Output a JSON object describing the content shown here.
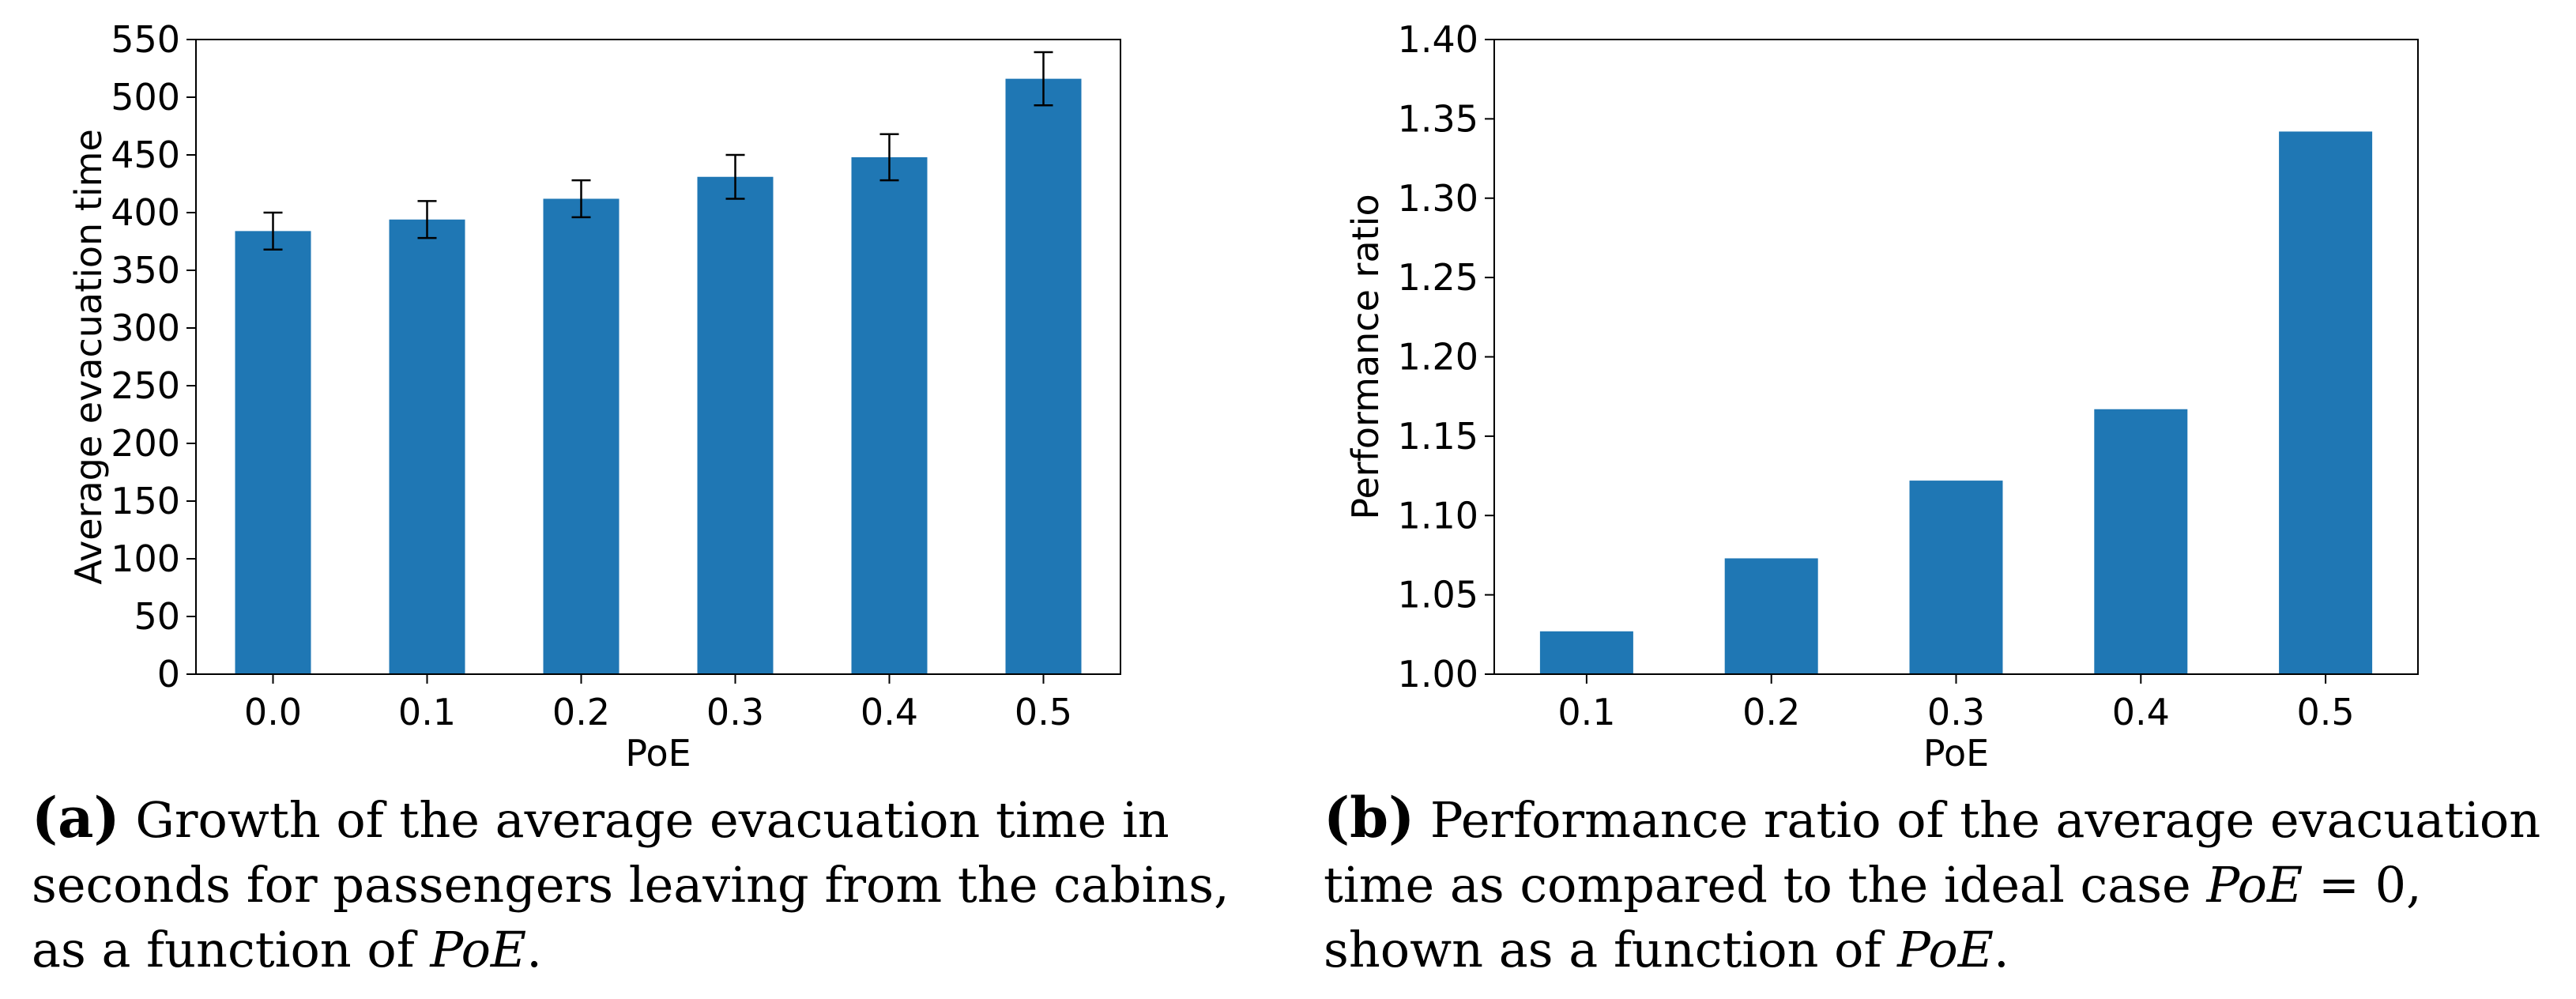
{
  "chart_data": [
    {
      "type": "bar",
      "categories": [
        "0.0",
        "0.1",
        "0.2",
        "0.3",
        "0.4",
        "0.5"
      ],
      "values": [
        384,
        394,
        412,
        431,
        448,
        516
      ],
      "error": [
        16,
        16,
        16,
        19,
        20,
        23
      ],
      "xlabel": "PoE",
      "ylabel": "Average evacuation time",
      "ylim": [
        0,
        550
      ],
      "yticks": [
        "0",
        "50",
        "100",
        "150",
        "200",
        "250",
        "300",
        "350",
        "400",
        "450",
        "500",
        "550"
      ],
      "color": "#1f77b4",
      "grid": false
    },
    {
      "type": "bar",
      "categories": [
        "0.1",
        "0.2",
        "0.3",
        "0.4",
        "0.5"
      ],
      "values": [
        1.027,
        1.073,
        1.122,
        1.167,
        1.342
      ],
      "xlabel": "PoE",
      "ylabel": "Performance ratio",
      "ylim": [
        1.0,
        1.4
      ],
      "yticks": [
        "1.00",
        "1.05",
        "1.10",
        "1.15",
        "1.20",
        "1.25",
        "1.30",
        "1.35",
        "1.40"
      ],
      "color": "#1f77b4",
      "grid": false
    }
  ],
  "captions": {
    "a": {
      "letter": "(a)",
      "text": " Growth of the average evacuation time in seconds for passengers leaving from the cabins, as a function of ",
      "var": "PoE",
      "end": "."
    },
    "b": {
      "letter": "(b)",
      "text": " Performance ratio of the average evacuation time as compared to the ideal case ",
      "var": "PoE",
      "eq": " = 0, shown as a function of ",
      "var2": "PoE",
      "end": "."
    }
  }
}
